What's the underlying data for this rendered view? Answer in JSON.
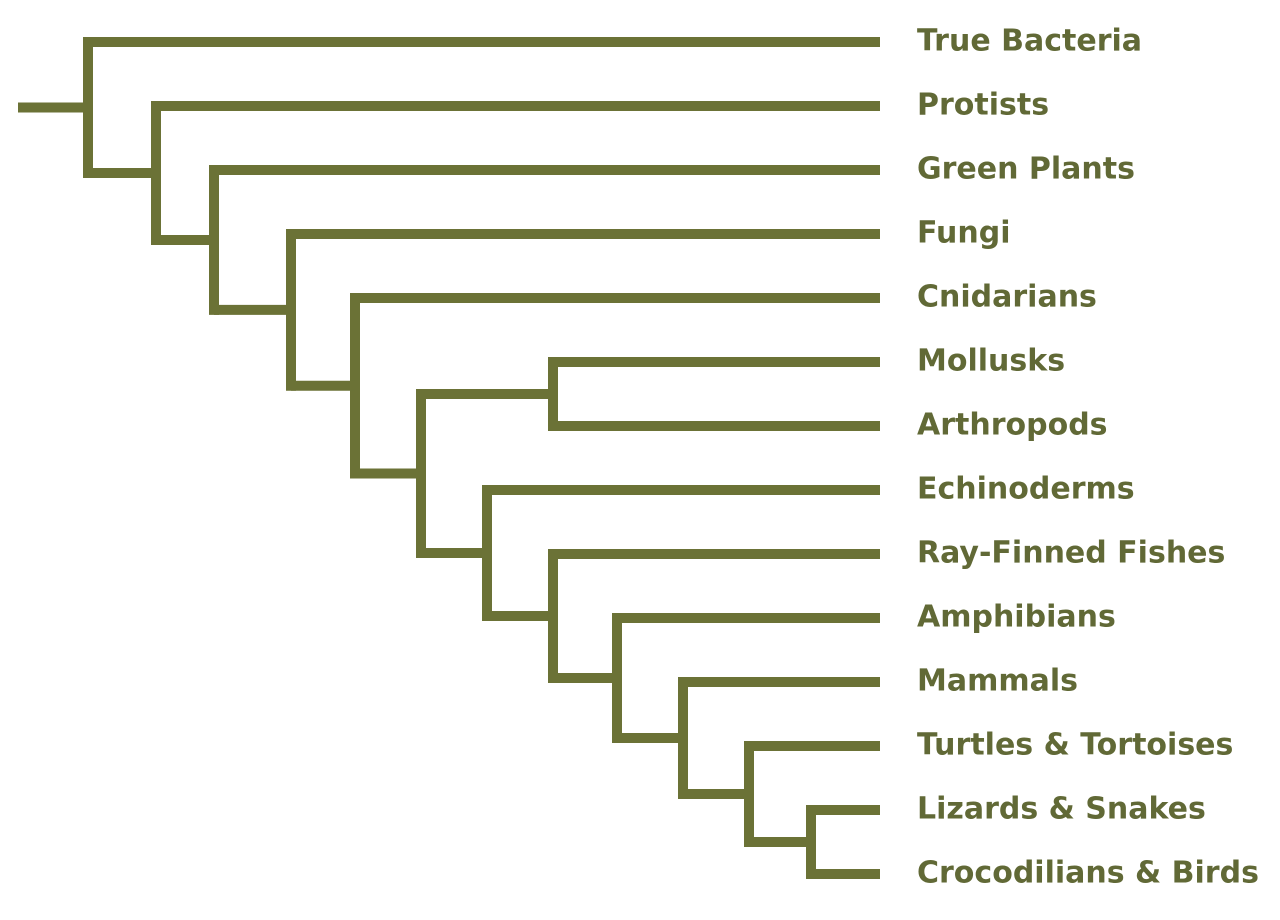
{
  "colors": {
    "branch": "#6b7236",
    "label": "#616936",
    "background": "#ffffff"
  },
  "diagram": {
    "type": "cladogram",
    "taxa": [
      "True Bacteria",
      "Protists",
      "Green Plants",
      "Fungi",
      "Cnidarians",
      "Mollusks",
      "Arthropods",
      "Echinoderms",
      "Ray-Finned Fishes",
      "Amphibians",
      "Mammals",
      "Turtles & Tortoises",
      "Lizards & Snakes",
      "Crocodilians & Birds"
    ],
    "tree": [
      "True Bacteria",
      [
        "Protists",
        [
          "Green Plants",
          [
            "Fungi",
            [
              "Cnidarians",
              [
                [
                  "Mollusks",
                  "Arthropods"
                ],
                [
                  "Echinoderms",
                  [
                    "Ray-Finned Fishes",
                    [
                      "Amphibians",
                      [
                        "Mammals",
                        [
                          "Turtles & Tortoises",
                          [
                            "Lizards & Snakes",
                            "Crocodilians & Birds"
                          ]
                        ]
                      ]
                    ]
                  ]
                ]
              ]
            ]
          ]
        ]
      ]
    ]
  }
}
